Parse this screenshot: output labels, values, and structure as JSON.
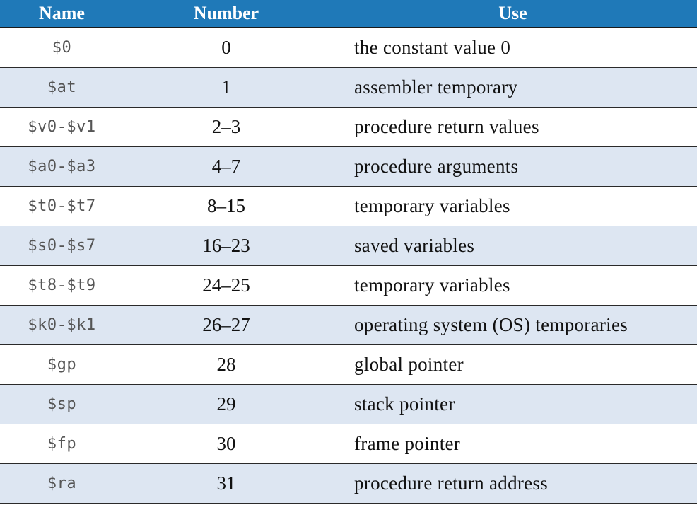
{
  "table": {
    "headers": {
      "name": "Name",
      "number": "Number",
      "use": "Use"
    },
    "rows": [
      {
        "name": "$0",
        "number": "0",
        "use": "the constant value 0"
      },
      {
        "name": "$at",
        "number": "1",
        "use": "assembler temporary"
      },
      {
        "name": "$v0-$v1",
        "number": "2–3",
        "use": "procedure return values"
      },
      {
        "name": "$a0-$a3",
        "number": "4–7",
        "use": "procedure arguments"
      },
      {
        "name": "$t0-$t7",
        "number": "8–15",
        "use": "temporary variables"
      },
      {
        "name": "$s0-$s7",
        "number": "16–23",
        "use": "saved variables"
      },
      {
        "name": "$t8-$t9",
        "number": "24–25",
        "use": "temporary variables"
      },
      {
        "name": "$k0-$k1",
        "number": "26–27",
        "use": "operating system (OS) temporaries"
      },
      {
        "name": "$gp",
        "number": "28",
        "use": "global pointer"
      },
      {
        "name": "$sp",
        "number": "29",
        "use": "stack pointer"
      },
      {
        "name": "$fp",
        "number": "30",
        "use": "frame pointer"
      },
      {
        "name": "$ra",
        "number": "31",
        "use": "procedure return address"
      }
    ]
  },
  "colors": {
    "header_background": "#1f79b8",
    "header_text": "#ffffff",
    "alternate_row": "#dde6f2"
  }
}
